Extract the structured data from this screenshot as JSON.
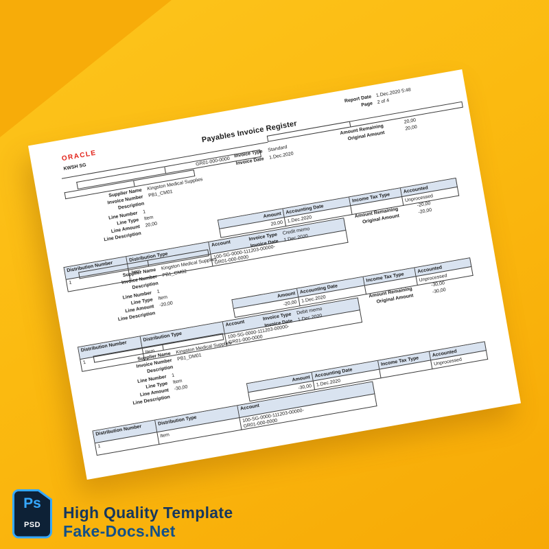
{
  "colors": {
    "background_top": "#fdc51d",
    "background_bottom": "#f7a906",
    "corner_triangle": "#f7ac09",
    "paper": "#ffffff",
    "table_header_fill": "#d9e3f0",
    "oracle_red": "#e2231a",
    "psd_icon_blue": "#35a8ff",
    "psd_icon_dark": "#0d2136",
    "caption_line1_color": "#16375f",
    "caption_line2_color": "#125089"
  },
  "document": {
    "header": {
      "report_date_label": "Report Date",
      "report_date_value": "1.Dec.2020 5:48",
      "page_label": "Page",
      "page_value": "2 of 4",
      "title": "Payables Invoice Register",
      "logo_text": "ORACLE",
      "org_name": "KWSH SG",
      "bar_code": "GR01-000-0000",
      "first_invoice": {
        "invoice_type": "Standard",
        "invoice_date": "1.Dec.2020",
        "amount_remaining": "20,00",
        "original_amount": "20,00"
      }
    },
    "labels": {
      "supplier_name": "Supplier Name",
      "invoice_number": "Invoice Number",
      "description": "Description",
      "line_number": "Line Number",
      "line_type": "Line Type",
      "line_amount": "Line Amount",
      "line_description": "Line Description",
      "invoice_type": "Invoice Type",
      "invoice_date": "Invoice Date",
      "amount_remaining": "Amount Remaining",
      "original_amount": "Original Amount"
    },
    "table_headers": {
      "amount": "Amount",
      "accounting_date": "Accounting Date",
      "income_tax_type": "Income Tax Type",
      "accounted": "Accounted",
      "distribution_number": "Distribution Number",
      "distribution_type": "Distribution Type",
      "account": "Account"
    },
    "blocks": [
      {
        "supplier": "Kingston Medical Supplies",
        "invoice_number": "PB1_CM01",
        "line_number": "1",
        "line_type": "Item",
        "line_amount": "20,00",
        "amount": "20,00",
        "accounting_date": "1.Dec.2020",
        "income_tax_type": "",
        "accounted": "Unprocessed",
        "distribution_number": "1",
        "distribution_type": "Item",
        "account_line1": "100-SG-0000-111203-00000-",
        "account_line2": "GR01-000-0000",
        "separator": false,
        "next": {
          "invoice_type": "Credit memo",
          "invoice_date": "1.Dec.2020",
          "amount_remaining": "-20,00",
          "original_amount": "-20,00"
        }
      },
      {
        "supplier": "Kingston Medical Supplies",
        "invoice_number": "PB1_CM02",
        "line_number": "1",
        "line_type": "Item",
        "line_amount": "-20,00",
        "amount": "-20,00",
        "accounting_date": "1.Dec.2020",
        "income_tax_type": "",
        "accounted": "Unprocessed",
        "distribution_number": "1",
        "distribution_type": "Item",
        "account_line1": "100-SG-0000-111203-00000-",
        "account_line2": "GR01-000-0000",
        "separator": true,
        "next": {
          "invoice_type": "Debit memo",
          "invoice_date": "1.Dec.2020",
          "amount_remaining": "-30,00",
          "original_amount": "-30,00"
        }
      },
      {
        "supplier": "Kingston Medical Supplies",
        "invoice_number": "PB1_DM01",
        "line_number": "1",
        "line_type": "Item",
        "line_amount": "-30,00",
        "amount": "-30,00",
        "accounting_date": "1.Dec.2020",
        "income_tax_type": "",
        "accounted": "Unprocessed",
        "distribution_number": "1",
        "distribution_type": "Item",
        "account_line1": "100-SG-0000-111203-00000-",
        "account_line2": "GR01-000-0000",
        "separator": true,
        "next": null
      }
    ]
  },
  "footer": {
    "ps_glyph": "Ps",
    "psd_label": "PSD",
    "caption_line1": "High Quality Template",
    "caption_line2": "Fake-Docs.Net"
  }
}
